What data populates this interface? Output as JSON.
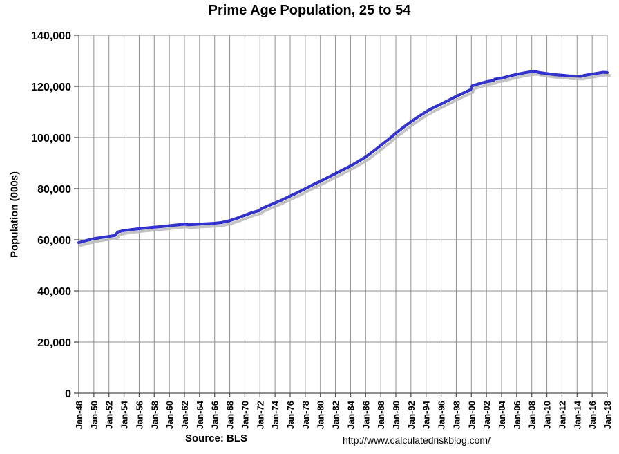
{
  "header": {
    "title": "Prime Age Population, 25 to 54"
  },
  "footer": {
    "source": "Source: BLS",
    "url": "http://www.calculatedriskblog.com/"
  },
  "chart_data": {
    "type": "line",
    "title": "Prime Age Population, 25 to 54",
    "xlabel": "",
    "ylabel": "Population (000s)",
    "x_range": [
      1948,
      2018
    ],
    "ylim": [
      0,
      140000
    ],
    "grid": true,
    "legend": "none",
    "colors": {
      "line": "#3333CC",
      "shadow": "#b8b8b8",
      "grid": "#909090",
      "axis": "#4d4d4d",
      "text": "#000000"
    },
    "ytick_values": [
      0,
      20000,
      40000,
      60000,
      80000,
      100000,
      120000,
      140000
    ],
    "ytick_labels": [
      "0",
      "20,000",
      "40,000",
      "60,000",
      "80,000",
      "100,000",
      "120,000",
      "140,000"
    ],
    "xtick_labels": [
      "Jan-48",
      "Jan-50",
      "Jan-52",
      "Jan-54",
      "Jan-56",
      "Jan-58",
      "Jan-60",
      "Jan-62",
      "Jan-64",
      "Jan-66",
      "Jan-68",
      "Jan-70",
      "Jan-72",
      "Jan-74",
      "Jan-76",
      "Jan-78",
      "Jan-80",
      "Jan-82",
      "Jan-84",
      "Jan-86",
      "Jan-88",
      "Jan-90",
      "Jan-92",
      "Jan-94",
      "Jan-96",
      "Jan-98",
      "Jan-00",
      "Jan-02",
      "Jan-04",
      "Jan-06",
      "Jan-08",
      "Jan-10",
      "Jan-12",
      "Jan-14",
      "Jan-16",
      "Jan-18"
    ],
    "series": [
      {
        "name": "Prime Age Population (000s)",
        "x": [
          1948,
          1949,
          1950,
          1951,
          1952,
          1952.8,
          1953.2,
          1954,
          1955,
          1956,
          1957,
          1958,
          1959,
          1960,
          1961,
          1962,
          1962.5,
          1963,
          1964,
          1965,
          1966,
          1967,
          1968,
          1969,
          1970,
          1971,
          1971.9,
          1972.1,
          1973,
          1974,
          1975,
          1976,
          1977,
          1978,
          1979,
          1980,
          1981,
          1982,
          1983,
          1984,
          1985,
          1986,
          1987,
          1988,
          1989,
          1990,
          1991,
          1992,
          1993,
          1994,
          1995,
          1996,
          1997,
          1998,
          1999,
          1999.9,
          2000.1,
          2001,
          2002,
          2002.9,
          2003.1,
          2004,
          2005,
          2006,
          2007,
          2008,
          2008.5,
          2009,
          2010,
          2011,
          2012,
          2013,
          2014,
          2014.5,
          2015,
          2016,
          2017,
          2017.5,
          2018
        ],
        "values": [
          58900,
          59700,
          60400,
          60900,
          61300,
          61700,
          63100,
          63600,
          64000,
          64350,
          64650,
          64950,
          65200,
          65500,
          65800,
          66100,
          65900,
          65950,
          66150,
          66300,
          66450,
          66800,
          67500,
          68500,
          69600,
          70700,
          71400,
          72000,
          73200,
          74400,
          75700,
          77100,
          78500,
          80000,
          81500,
          82900,
          84400,
          85900,
          87400,
          88900,
          90600,
          92400,
          94600,
          96900,
          99200,
          101700,
          104000,
          106200,
          108200,
          110100,
          111700,
          113100,
          114600,
          116100,
          117500,
          118700,
          120200,
          121000,
          121800,
          122300,
          122800,
          123200,
          124000,
          124700,
          125300,
          125750,
          125800,
          125400,
          125000,
          124600,
          124350,
          124100,
          124000,
          123950,
          124300,
          124800,
          125300,
          125500,
          125400
        ]
      }
    ]
  }
}
